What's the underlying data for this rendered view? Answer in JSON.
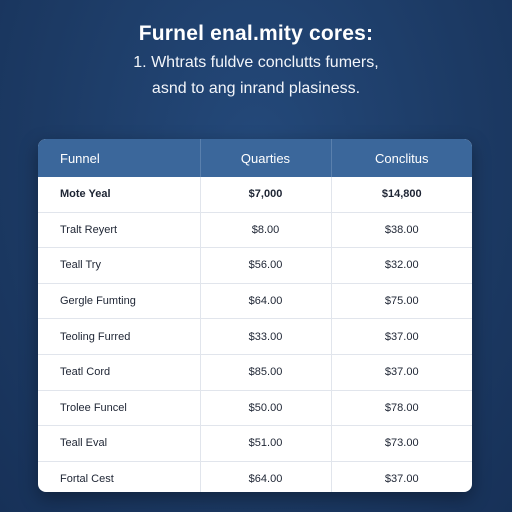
{
  "header": {
    "title": "Furnel enal.mity cores:",
    "subtitle_line1": "1. Whtrats fuldve conclutts fumers,",
    "subtitle_line2": "asnd to ang inrand plasiness."
  },
  "table": {
    "columns": [
      "Funnel",
      "Quarties",
      "Conclitus"
    ],
    "rows": [
      {
        "name": "Mote Yeal",
        "quarties": "$7,000",
        "conclitus": "$14,800",
        "bold": true
      },
      {
        "name": "Tralt Reyert",
        "quarties": "$8.00",
        "conclitus": "$38.00",
        "bold": false
      },
      {
        "name": "Teall Try",
        "quarties": "$56.00",
        "conclitus": "$32.00",
        "bold": false
      },
      {
        "name": "Gergle Fumting",
        "quarties": "$64.00",
        "conclitus": "$75.00",
        "bold": false
      },
      {
        "name": "Teoling Furred",
        "quarties": "$33.00",
        "conclitus": "$37.00",
        "bold": false
      },
      {
        "name": "Teatl Cord",
        "quarties": "$85.00",
        "conclitus": "$37.00",
        "bold": false
      },
      {
        "name": "Trolee Funcel",
        "quarties": "$50.00",
        "conclitus": "$78.00",
        "bold": false
      },
      {
        "name": "Teall Eval",
        "quarties": "$51.00",
        "conclitus": "$73.00",
        "bold": false
      },
      {
        "name": "Fortal Cest",
        "quarties": "$64.00",
        "conclitus": "$37.00",
        "bold": false
      }
    ]
  },
  "colors": {
    "background": "#1c3a64",
    "header_bar": "#3b679b",
    "card": "#ffffff",
    "text": "#1d2433"
  }
}
